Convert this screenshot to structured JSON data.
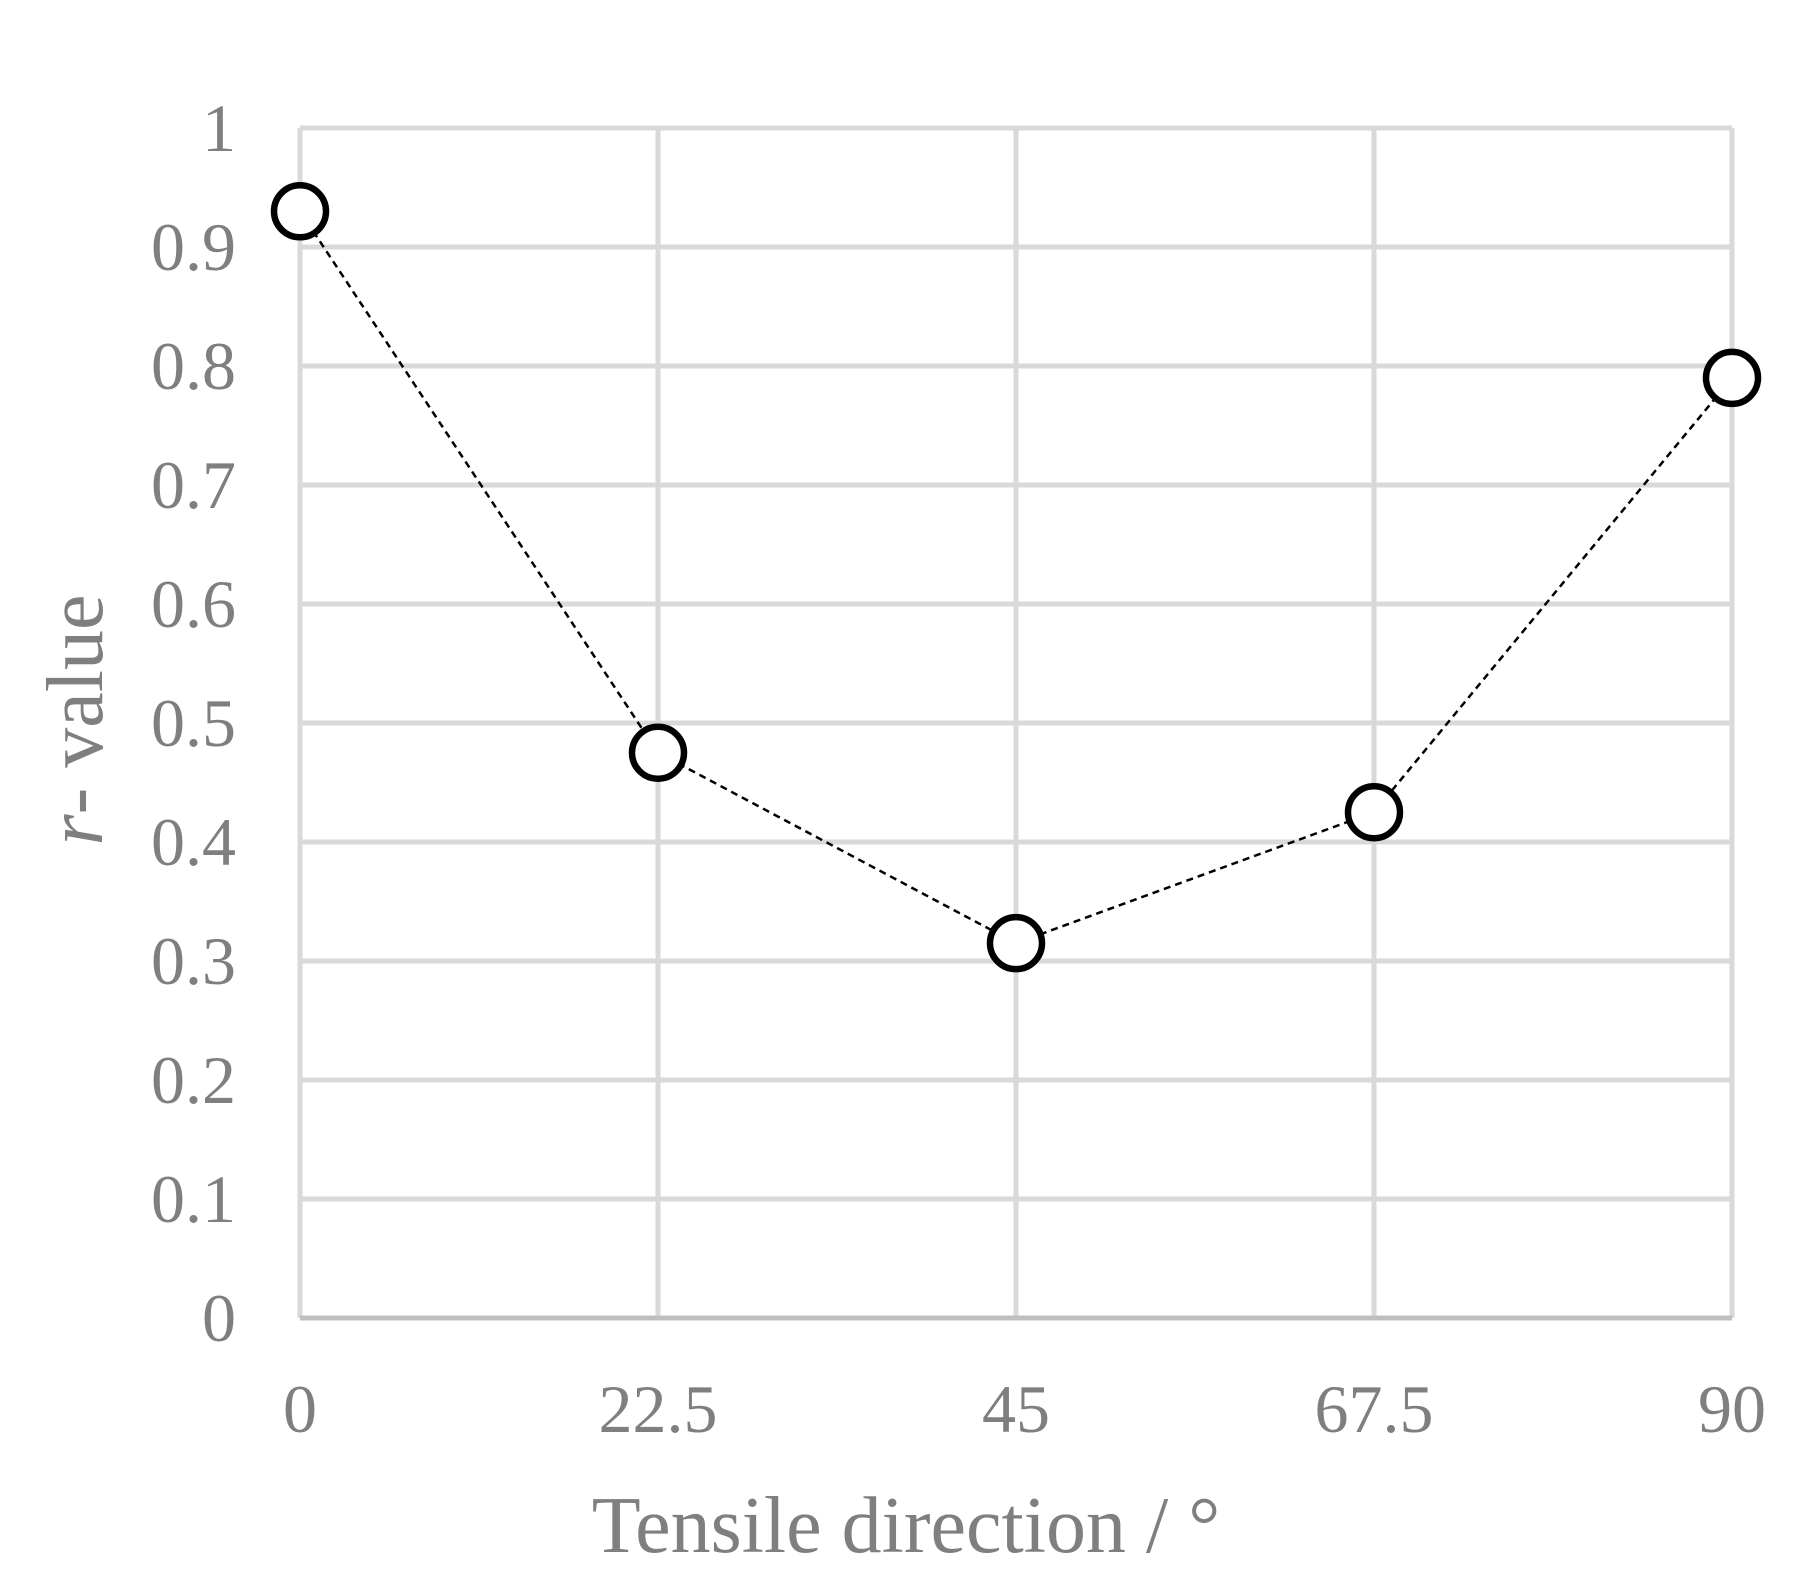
{
  "chart_data": {
    "type": "scatter",
    "title": "",
    "xlabel": "Tensile direction / °",
    "ylabel_prefix": "r",
    "ylabel_suffix": "- value",
    "x": [
      0,
      22.5,
      45,
      67.5,
      90
    ],
    "y": [
      0.93,
      0.475,
      0.315,
      0.425,
      0.79
    ],
    "x_ticks": [
      "0",
      "22.5",
      "45",
      "67.5",
      "90"
    ],
    "y_ticks": [
      "0",
      "0.1",
      "0.2",
      "0.3",
      "0.4",
      "0.5",
      "0.6",
      "0.7",
      "0.8",
      "0.9",
      "1"
    ],
    "xlim": [
      0,
      90
    ],
    "ylim": [
      0,
      1
    ],
    "grid": true,
    "line_style": "dashed",
    "marker": "open-circle",
    "colors": {
      "text": "#7f7f7f",
      "grid": "#d9d9d9",
      "axis": "#bfbfbf",
      "series": "#000000",
      "marker_fill": "#ffffff"
    }
  }
}
